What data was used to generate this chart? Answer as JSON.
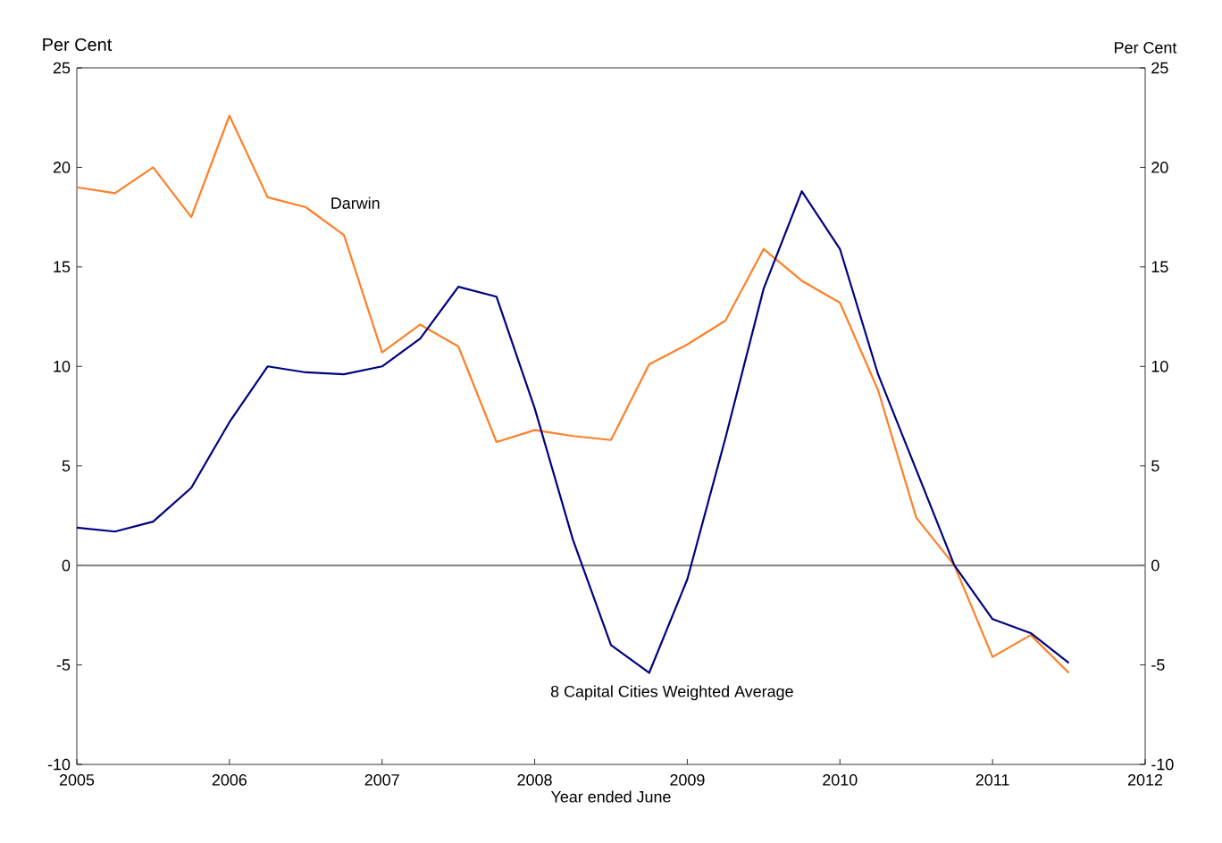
{
  "chart_data": {
    "type": "line",
    "xlabel": "Year ended June",
    "ylabel": "Per Cent",
    "y2label": "Per Cent",
    "x": [
      2005,
      2005.25,
      2005.5,
      2005.75,
      2006,
      2006.25,
      2006.5,
      2006.75,
      2007,
      2007.25,
      2007.5,
      2007.75,
      2008,
      2008.25,
      2008.5,
      2008.75,
      2009,
      2009.25,
      2009.5,
      2009.75,
      2010,
      2010.25,
      2010.5,
      2010.75,
      2011,
      2011.25,
      2011.5
    ],
    "series": [
      {
        "name": "Darwin",
        "color": "#ff7f27",
        "values": [
          19.0,
          18.7,
          20.0,
          17.5,
          22.6,
          18.5,
          18.0,
          16.6,
          10.7,
          12.1,
          11.0,
          6.2,
          6.8,
          6.5,
          6.3,
          10.1,
          11.1,
          12.3,
          15.9,
          14.3,
          13.2,
          8.8,
          2.4,
          0.0,
          -4.6,
          -3.5,
          -5.4
        ]
      },
      {
        "name": "8 Capital Cities Weighted Average",
        "color": "#000080",
        "values": [
          1.9,
          1.7,
          2.2,
          3.9,
          7.2,
          10.0,
          9.7,
          9.6,
          10.0,
          11.4,
          14.0,
          13.5,
          7.9,
          1.3,
          -4.0,
          -5.4,
          -0.7,
          6.4,
          13.9,
          18.8,
          15.9,
          9.6,
          4.8,
          0.0,
          -2.7,
          -3.4,
          -4.9
        ]
      }
    ],
    "xlim": [
      2005,
      2012
    ],
    "xticks": [
      2005,
      2006,
      2007,
      2008,
      2009,
      2010,
      2011,
      2012
    ],
    "ylim": [
      -10,
      25
    ],
    "yticks": [
      -10,
      -5,
      0,
      5,
      10,
      15,
      20,
      25
    ],
    "y2lim": [
      -10,
      25
    ],
    "y2ticks": [
      -10,
      -5,
      0,
      5,
      10,
      15,
      20,
      25
    ],
    "ref_lines": [
      {
        "axis": "y",
        "value": 0,
        "color": "#808080"
      }
    ]
  }
}
